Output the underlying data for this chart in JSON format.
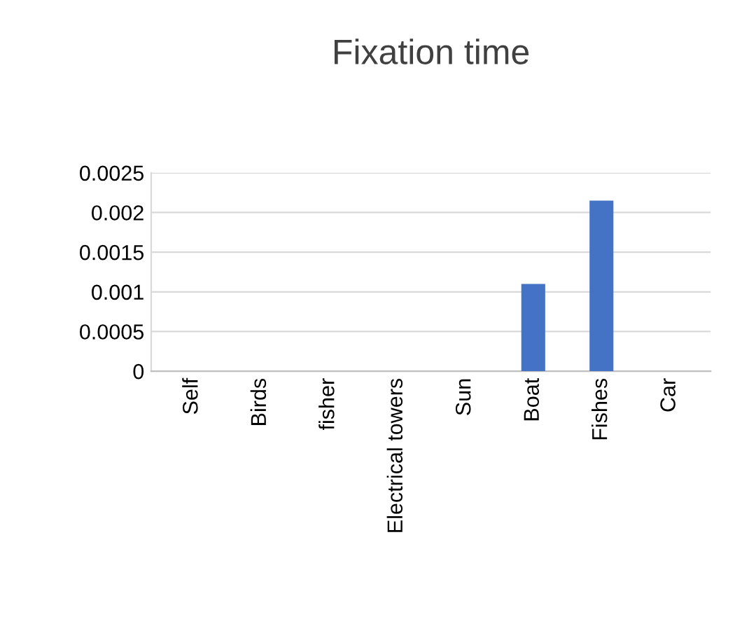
{
  "chart_data": {
    "type": "bar",
    "title": "Fixation time",
    "categories": [
      "Self",
      "Birds",
      "fisher",
      "Electrical towers",
      "Sun",
      "Boat",
      "Fishes",
      "Car"
    ],
    "values": [
      0,
      0,
      0,
      0,
      0,
      0.0011,
      0.00215,
      0
    ],
    "color": "#4472c4",
    "ylim": [
      0,
      0.0025
    ],
    "yticks": [
      0,
      0.0005,
      0.001,
      0.0015,
      0.002,
      0.0025
    ],
    "grid": "y"
  }
}
